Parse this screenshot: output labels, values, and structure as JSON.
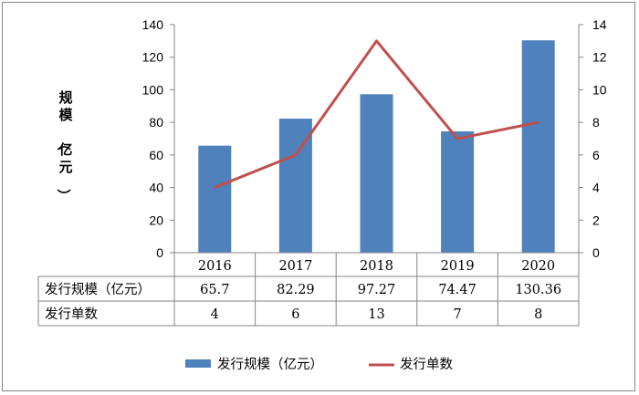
{
  "chart_data": {
    "type": "bar+line",
    "categories": [
      "2016",
      "2017",
      "2018",
      "2019",
      "2020"
    ],
    "series": [
      {
        "name": "发行规模（亿元）",
        "type": "bar",
        "axis": "left",
        "values": [
          65.7,
          82.29,
          97.27,
          74.47,
          130.36
        ],
        "color": "#4F81BD"
      },
      {
        "name": "发行单数",
        "type": "line",
        "axis": "right",
        "values": [
          4,
          6,
          13,
          7,
          8
        ],
        "color": "#C0504D"
      }
    ],
    "ylabel": "规模（亿元）",
    "ylim": [
      0,
      140
    ],
    "y_ticks": [
      "0",
      "20",
      "40",
      "60",
      "80",
      "100",
      "120",
      "140"
    ],
    "y2lim": [
      0,
      14
    ],
    "y2_ticks": [
      "0",
      "2",
      "4",
      "6",
      "8",
      "10",
      "12",
      "14"
    ],
    "table": {
      "rows": [
        {
          "label": "发行规模（亿元）",
          "values": [
            "65.7",
            "82.29",
            "97.27",
            "74.47",
            "130.36"
          ]
        },
        {
          "label": "发行单数",
          "values": [
            "4",
            "6",
            "13",
            "7",
            "8"
          ]
        }
      ]
    },
    "legend_position": "bottom",
    "grid": false
  }
}
